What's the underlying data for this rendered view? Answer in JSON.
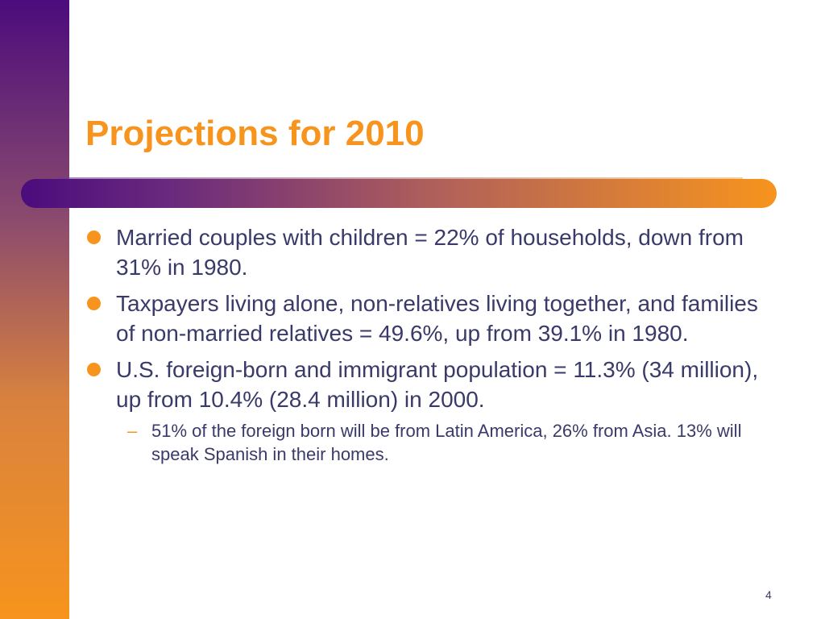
{
  "slide": {
    "title": "Projections for 2010",
    "bullets": [
      "Married couples with children = 22% of households, down from 31% in 1980.",
      "Taxpayers living alone, non-relatives living together, and families of non-married relatives = 49.6%, up from 39.1% in 1980.",
      "U.S. foreign-born and immigrant population = 11.3% (34 million), up from 10.4% (28.4 million) in 2000."
    ],
    "sub_bullets": [
      "51% of the foreign born will be from Latin America, 26% from Asia. 13% will speak Spanish in their homes."
    ],
    "sub_marker": "–",
    "page_number": "4"
  },
  "colors": {
    "accent": "#f7941d",
    "purple": "#4b0c7d",
    "text": "#3a3a6a"
  }
}
